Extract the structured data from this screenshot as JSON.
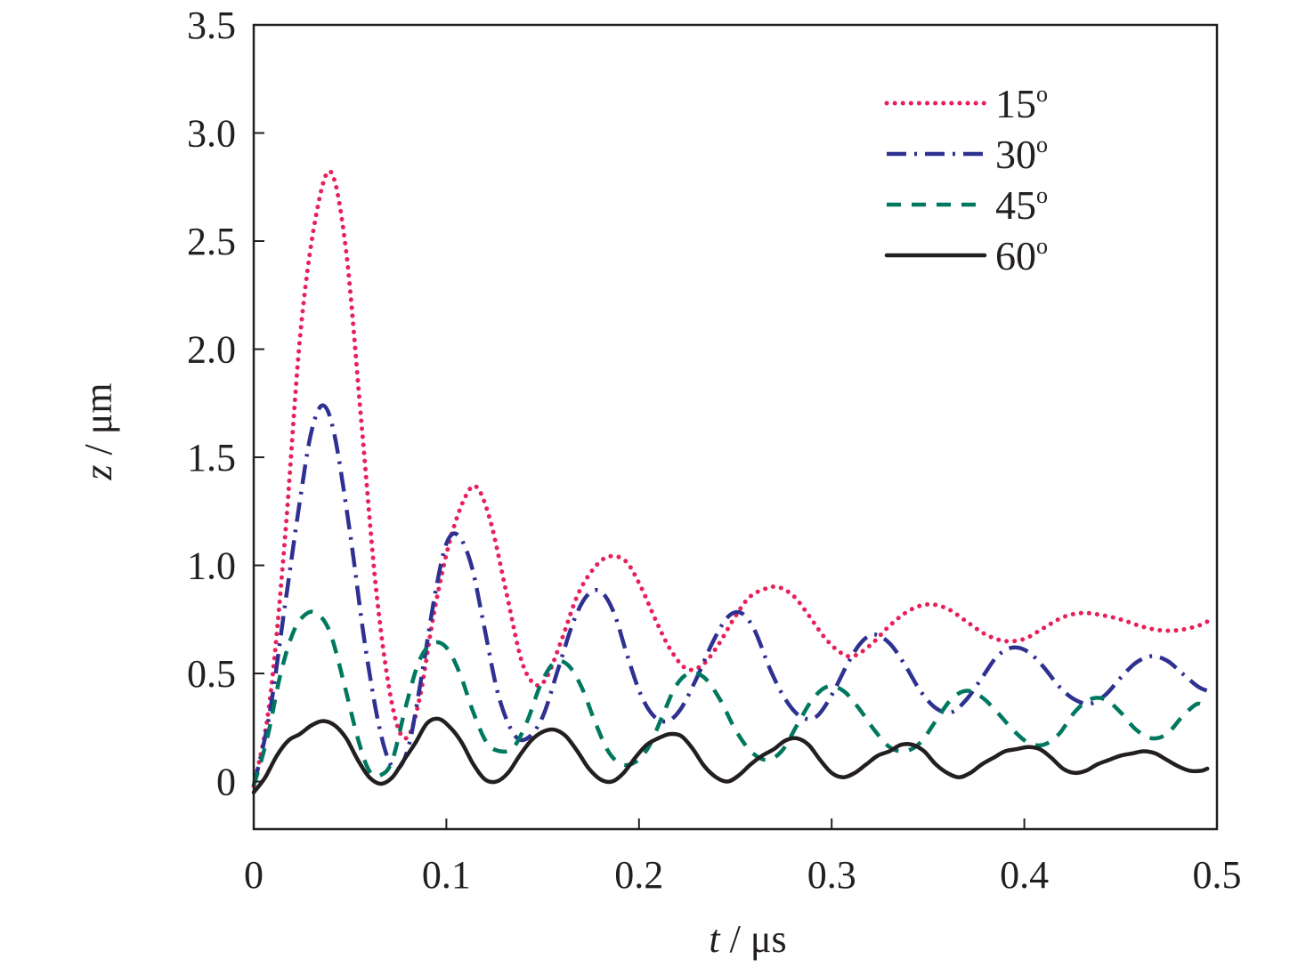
{
  "chart_data": {
    "type": "line",
    "xlabel": {
      "var": "t",
      "unit": " / μs"
    },
    "ylabel": {
      "var": "z",
      "unit": " / μm"
    },
    "xlim": [
      0,
      0.5
    ],
    "ylim": [
      -0.22,
      3.5
    ],
    "xticks": [
      {
        "v": 0,
        "label": "0"
      },
      {
        "v": 0.1,
        "label": "0.1"
      },
      {
        "v": 0.2,
        "label": "0.2"
      },
      {
        "v": 0.3,
        "label": "0.3"
      },
      {
        "v": 0.4,
        "label": "0.4"
      },
      {
        "v": 0.5,
        "label": "0.5"
      }
    ],
    "yticks": [
      {
        "v": 0,
        "label": "0"
      },
      {
        "v": 0.5,
        "label": "0.5"
      },
      {
        "v": 1.0,
        "label": "1.0"
      },
      {
        "v": 1.5,
        "label": "1.5"
      },
      {
        "v": 2.0,
        "label": "2.0"
      },
      {
        "v": 2.5,
        "label": "2.5"
      },
      {
        "v": 3.0,
        "label": "3.0"
      },
      {
        "v": 3.5,
        "label": "3.5"
      }
    ],
    "grid": false,
    "legend_position": "top-right",
    "series": [
      {
        "name": "15",
        "name_sup": "o",
        "color": "#e8205a",
        "dash": "dotted",
        "x": [
          0,
          0.008,
          0.016,
          0.024,
          0.032,
          0.04,
          0.048,
          0.056,
          0.064,
          0.072,
          0.079,
          0.086,
          0.094,
          0.102,
          0.11,
          0.116,
          0.123,
          0.131,
          0.139,
          0.146,
          0.152,
          0.16,
          0.168,
          0.176,
          0.184,
          0.193,
          0.201,
          0.209,
          0.217,
          0.225,
          0.233,
          0.241,
          0.249,
          0.257,
          0.265,
          0.272,
          0.28,
          0.288,
          0.296,
          0.304,
          0.311,
          0.32,
          0.33,
          0.34,
          0.35,
          0.36,
          0.37,
          0.38,
          0.39,
          0.4,
          0.41,
          0.42,
          0.43,
          0.44,
          0.45,
          0.46,
          0.47,
          0.48,
          0.49,
          0.495
        ],
        "values": [
          -0.02,
          0.35,
          1.1,
          2.05,
          2.6,
          2.82,
          2.45,
          1.65,
          0.85,
          0.35,
          0.2,
          0.38,
          0.8,
          1.12,
          1.32,
          1.36,
          1.2,
          0.88,
          0.56,
          0.45,
          0.48,
          0.66,
          0.86,
          0.98,
          1.04,
          1.02,
          0.9,
          0.74,
          0.6,
          0.52,
          0.54,
          0.63,
          0.75,
          0.85,
          0.89,
          0.9,
          0.86,
          0.77,
          0.67,
          0.6,
          0.58,
          0.63,
          0.72,
          0.79,
          0.82,
          0.8,
          0.74,
          0.68,
          0.65,
          0.66,
          0.71,
          0.76,
          0.78,
          0.77,
          0.75,
          0.72,
          0.7,
          0.7,
          0.72,
          0.74
        ]
      },
      {
        "name": "30",
        "name_sup": "o",
        "color": "#2e3192",
        "dash": "dashdot",
        "x": [
          0,
          0.008,
          0.016,
          0.024,
          0.03,
          0.036,
          0.042,
          0.05,
          0.058,
          0.066,
          0.073,
          0.08,
          0.087,
          0.094,
          0.1,
          0.106,
          0.113,
          0.12,
          0.127,
          0.135,
          0.142,
          0.15,
          0.158,
          0.166,
          0.173,
          0.18,
          0.187,
          0.194,
          0.201,
          0.208,
          0.215,
          0.222,
          0.23,
          0.238,
          0.246,
          0.253,
          0.26,
          0.268,
          0.276,
          0.284,
          0.292,
          0.3,
          0.308,
          0.315,
          0.322,
          0.33,
          0.338,
          0.346,
          0.354,
          0.362,
          0.37,
          0.378,
          0.386,
          0.394,
          0.402,
          0.41,
          0.418,
          0.426,
          0.434,
          0.442,
          0.45,
          0.458,
          0.466,
          0.474,
          0.482,
          0.49,
          0.495
        ],
        "values": [
          -0.02,
          0.3,
          0.8,
          1.3,
          1.62,
          1.74,
          1.6,
          1.15,
          0.62,
          0.22,
          0.06,
          0.15,
          0.48,
          0.86,
          1.1,
          1.14,
          1.0,
          0.7,
          0.4,
          0.22,
          0.2,
          0.3,
          0.52,
          0.74,
          0.86,
          0.88,
          0.78,
          0.58,
          0.4,
          0.3,
          0.28,
          0.34,
          0.48,
          0.64,
          0.76,
          0.78,
          0.7,
          0.52,
          0.38,
          0.3,
          0.3,
          0.4,
          0.54,
          0.64,
          0.68,
          0.64,
          0.54,
          0.42,
          0.34,
          0.32,
          0.38,
          0.48,
          0.58,
          0.62,
          0.6,
          0.53,
          0.44,
          0.38,
          0.36,
          0.4,
          0.48,
          0.55,
          0.58,
          0.56,
          0.5,
          0.44,
          0.42
        ]
      },
      {
        "name": "45",
        "name_sup": "o",
        "color": "#00785f",
        "dash": "dashed",
        "x": [
          0,
          0.007,
          0.014,
          0.021,
          0.028,
          0.034,
          0.04,
          0.047,
          0.054,
          0.06,
          0.066,
          0.072,
          0.079,
          0.086,
          0.093,
          0.1,
          0.107,
          0.114,
          0.121,
          0.128,
          0.135,
          0.142,
          0.149,
          0.156,
          0.163,
          0.17,
          0.177,
          0.184,
          0.191,
          0.198,
          0.205,
          0.212,
          0.219,
          0.226,
          0.234,
          0.242,
          0.25,
          0.258,
          0.266,
          0.274,
          0.282,
          0.29,
          0.298,
          0.306,
          0.314,
          0.322,
          0.33,
          0.338,
          0.346,
          0.354,
          0.362,
          0.37,
          0.378,
          0.386,
          0.394,
          0.402,
          0.41,
          0.418,
          0.426,
          0.434,
          0.442,
          0.45,
          0.458,
          0.466,
          0.474,
          0.482,
          0.49,
          0.495
        ],
        "values": [
          -0.02,
          0.2,
          0.5,
          0.7,
          0.78,
          0.77,
          0.68,
          0.45,
          0.2,
          0.05,
          0.03,
          0.1,
          0.35,
          0.56,
          0.64,
          0.62,
          0.5,
          0.32,
          0.18,
          0.14,
          0.16,
          0.28,
          0.45,
          0.55,
          0.54,
          0.44,
          0.28,
          0.14,
          0.08,
          0.09,
          0.16,
          0.3,
          0.44,
          0.5,
          0.48,
          0.38,
          0.24,
          0.14,
          0.1,
          0.14,
          0.26,
          0.38,
          0.44,
          0.42,
          0.34,
          0.24,
          0.16,
          0.14,
          0.18,
          0.28,
          0.38,
          0.42,
          0.39,
          0.32,
          0.24,
          0.18,
          0.17,
          0.22,
          0.32,
          0.38,
          0.38,
          0.32,
          0.24,
          0.2,
          0.22,
          0.3,
          0.36,
          0.33
        ]
      },
      {
        "name": "60",
        "name_sup": "o",
        "color": "#231f20",
        "dash": "solid",
        "x": [
          0,
          0.006,
          0.012,
          0.018,
          0.024,
          0.03,
          0.036,
          0.042,
          0.048,
          0.054,
          0.06,
          0.066,
          0.072,
          0.078,
          0.084,
          0.09,
          0.096,
          0.102,
          0.108,
          0.114,
          0.12,
          0.126,
          0.132,
          0.138,
          0.144,
          0.15,
          0.156,
          0.162,
          0.168,
          0.174,
          0.18,
          0.186,
          0.192,
          0.198,
          0.204,
          0.21,
          0.216,
          0.222,
          0.228,
          0.234,
          0.24,
          0.246,
          0.252,
          0.258,
          0.264,
          0.27,
          0.276,
          0.282,
          0.288,
          0.294,
          0.3,
          0.306,
          0.312,
          0.318,
          0.324,
          0.33,
          0.336,
          0.342,
          0.348,
          0.354,
          0.36,
          0.366,
          0.372,
          0.378,
          0.384,
          0.39,
          0.396,
          0.402,
          0.408,
          0.414,
          0.42,
          0.426,
          0.432,
          0.438,
          0.444,
          0.45,
          0.456,
          0.462,
          0.468,
          0.474,
          0.48,
          0.486,
          0.492,
          0.495
        ],
        "values": [
          -0.05,
          0.02,
          0.12,
          0.19,
          0.22,
          0.26,
          0.28,
          0.26,
          0.2,
          0.1,
          0.02,
          -0.01,
          0.02,
          0.1,
          0.18,
          0.27,
          0.29,
          0.25,
          0.18,
          0.08,
          0.01,
          0.0,
          0.04,
          0.12,
          0.19,
          0.23,
          0.24,
          0.21,
          0.14,
          0.06,
          0.01,
          0.0,
          0.04,
          0.11,
          0.17,
          0.2,
          0.22,
          0.21,
          0.15,
          0.07,
          0.02,
          0.0,
          0.03,
          0.08,
          0.12,
          0.15,
          0.19,
          0.2,
          0.17,
          0.1,
          0.04,
          0.02,
          0.04,
          0.08,
          0.12,
          0.14,
          0.17,
          0.17,
          0.14,
          0.08,
          0.04,
          0.02,
          0.04,
          0.08,
          0.11,
          0.14,
          0.15,
          0.16,
          0.15,
          0.11,
          0.06,
          0.04,
          0.05,
          0.08,
          0.1,
          0.12,
          0.13,
          0.14,
          0.13,
          0.1,
          0.07,
          0.05,
          0.05,
          0.06
        ]
      }
    ]
  }
}
